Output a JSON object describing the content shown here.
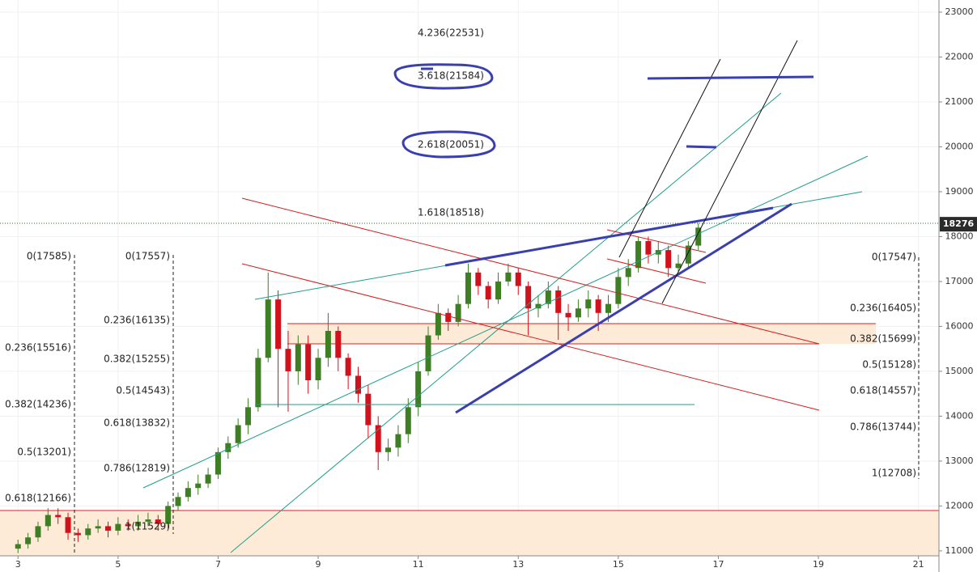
{
  "chart_data": {
    "type": "candlestick",
    "candles": {
      "x": [
        3.0,
        3.2,
        3.4,
        3.6,
        3.8,
        4.0,
        4.2,
        4.4,
        4.6,
        4.8,
        5.0,
        5.2,
        5.4,
        5.6,
        5.8,
        6.0,
        6.2,
        6.4,
        6.6,
        6.8,
        7.0,
        7.2,
        7.4,
        7.6,
        7.8,
        8.0,
        8.2,
        8.4,
        8.6,
        8.8,
        9.0,
        9.2,
        9.4,
        9.6,
        9.8,
        10.0,
        10.2,
        10.4,
        10.6,
        10.8,
        11.0,
        11.2,
        11.4,
        11.6,
        11.8,
        12.0,
        12.2,
        12.4,
        12.6,
        12.8,
        13.0,
        13.2,
        13.4,
        13.6,
        13.8,
        14.0,
        14.2,
        14.4,
        14.6,
        14.8,
        15.0,
        15.2,
        15.4,
        15.6,
        15.8,
        16.0,
        16.2,
        16.4,
        16.6
      ],
      "open": [
        11050,
        11150,
        11300,
        11550,
        11800,
        11750,
        11400,
        11350,
        11500,
        11550,
        11450,
        11600,
        11550,
        11650,
        11700,
        11600,
        12000,
        12200,
        12400,
        12500,
        12700,
        13200,
        13400,
        13800,
        14200,
        15300,
        16600,
        15500,
        15000,
        15600,
        14800,
        15300,
        15900,
        15300,
        14900,
        14500,
        13800,
        13200,
        13300,
        13600,
        14200,
        15000,
        15800,
        16300,
        16100,
        16500,
        17200,
        16900,
        16600,
        17000,
        17200,
        16900,
        16400,
        16500,
        16800,
        16300,
        16200,
        16400,
        16600,
        16300,
        16500,
        17100,
        17300,
        17900,
        17600,
        17700,
        17300,
        17400,
        17800
      ],
      "high": [
        11250,
        11400,
        11650,
        11950,
        11950,
        11850,
        11500,
        11600,
        11700,
        11650,
        11750,
        11700,
        11800,
        11850,
        11800,
        12100,
        12300,
        12550,
        12700,
        12850,
        13300,
        13550,
        13950,
        14400,
        15500,
        17200,
        16800,
        15900,
        15800,
        15800,
        15500,
        16300,
        16000,
        15400,
        15100,
        14700,
        14000,
        13500,
        13800,
        14400,
        15200,
        16000,
        16500,
        16400,
        16700,
        17400,
        17300,
        17000,
        17200,
        17400,
        17300,
        17000,
        16700,
        17000,
        16900,
        16500,
        16600,
        16800,
        16700,
        16700,
        17300,
        17500,
        18000,
        18000,
        17900,
        17800,
        17600,
        17900,
        18300
      ],
      "low": [
        10950,
        11050,
        11200,
        11450,
        11600,
        11250,
        11200,
        11250,
        11400,
        11300,
        11350,
        11450,
        11450,
        11550,
        11450,
        11500,
        11900,
        12100,
        12250,
        12400,
        12600,
        13050,
        13300,
        13600,
        14100,
        15200,
        14200,
        14100,
        14700,
        14500,
        14600,
        15100,
        15000,
        14600,
        14300,
        13500,
        12800,
        13000,
        13100,
        13400,
        14000,
        14900,
        15700,
        15900,
        16000,
        16400,
        16700,
        16400,
        16500,
        16900,
        16700,
        15800,
        16200,
        16400,
        15700,
        15900,
        16100,
        16200,
        15900,
        16100,
        16400,
        16900,
        17200,
        17400,
        17400,
        17100,
        17200,
        17300,
        17700
      ],
      "close": [
        11150,
        11300,
        11550,
        11800,
        11750,
        11400,
        11350,
        11500,
        11550,
        11450,
        11600,
        11550,
        11650,
        11700,
        11600,
        12000,
        12200,
        12400,
        12500,
        12700,
        13200,
        13400,
        13800,
        14200,
        15300,
        16600,
        15500,
        15000,
        15600,
        14800,
        15300,
        15900,
        15300,
        14900,
        14500,
        13800,
        13200,
        13300,
        13600,
        14200,
        15000,
        15800,
        16300,
        16100,
        16500,
        17200,
        16900,
        16600,
        17000,
        17200,
        16900,
        16400,
        16500,
        16800,
        16300,
        16200,
        16400,
        16600,
        16300,
        16500,
        17100,
        17300,
        17900,
        17600,
        17700,
        17300,
        17400,
        17800,
        18200
      ]
    },
    "up_color": "#3f7f24",
    "down_color": "#d3111c",
    "xlim": [
      2.64,
      21.41
    ],
    "xticks": [
      3,
      5,
      7,
      9,
      11,
      13,
      15,
      17,
      19,
      21
    ],
    "ylim": [
      10890,
      23270
    ],
    "yticks": [
      11000,
      12000,
      13000,
      14000,
      15000,
      16000,
      17000,
      18000,
      19000,
      20000,
      21000,
      22000,
      23000
    ],
    "grid": true,
    "last_price": 18276,
    "fib_labels": {
      "left": [
        "0(17585)",
        "0.236(15516)",
        "0.382(14236)",
        "0.5(13201)",
        "0.618(12166)"
      ],
      "middle": [
        "0(17557)",
        "0.236(16135)",
        "0.382(15255)",
        "0.5(14543)",
        "0.618(13832)",
        "0.786(12819)",
        "1(11529)"
      ],
      "right": [
        "0(17547)",
        "0.236(16405)",
        "0.382(15699)",
        "0.5(15128)",
        "0.618(14557)",
        "0.786(13744)",
        "1(12708)"
      ],
      "extension": [
        "4.236(22531)",
        "3.618(21584)",
        "2.618(20051)",
        "1.618(18518)"
      ]
    }
  }
}
